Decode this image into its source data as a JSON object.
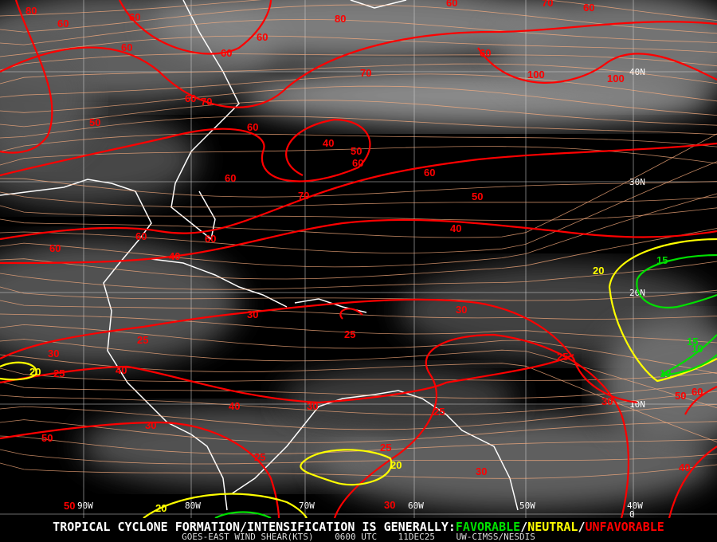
{
  "product": {
    "headline_prefix": "TROPICAL CYCLONE FORMATION/INTENSIFICATION IS GENERALLY:",
    "favorable": "FAVORABLE",
    "sep1": "/",
    "neutral": "NEUTRAL",
    "sep2": "/",
    "unfavorable": "UNFAVORABLE",
    "subtitle": "GOES-EAST WIND SHEAR(KTS)",
    "time": "0600 UTC",
    "date": "11DEC25",
    "source": "UW-CIMSS/NESDIS"
  },
  "colors": {
    "favorable": "#00e000",
    "neutral": "#ffff00",
    "unfavorable": "#ff0000",
    "streamlines": "#ffb080",
    "grid": "#d0d0d0",
    "coastline": "#ffffff"
  },
  "grid": {
    "longitudes": [
      "90W",
      "80W",
      "70W",
      "60W",
      "50W",
      "40W"
    ],
    "latitudes": [
      "40N",
      "30N",
      "20N",
      "10N",
      "0"
    ]
  },
  "contour_labels": [
    "80",
    "60",
    "80",
    "60",
    "70",
    "60",
    "60",
    "60",
    "60",
    "60",
    "60",
    "100",
    "100",
    "50",
    "60",
    "70",
    "70",
    "60",
    "40",
    "50",
    "60",
    "60",
    "60",
    "70",
    "50",
    "40",
    "60",
    "60",
    "60",
    "40",
    "30",
    "30",
    "25",
    "25",
    "30",
    "25",
    "40",
    "25",
    "30",
    "50",
    "60",
    "40",
    "30",
    "25",
    "30",
    "50",
    "25",
    "25",
    "30",
    "40",
    "30",
    "50",
    "20",
    "20",
    "20",
    "20",
    "15",
    "15",
    "10",
    "10"
  ]
}
